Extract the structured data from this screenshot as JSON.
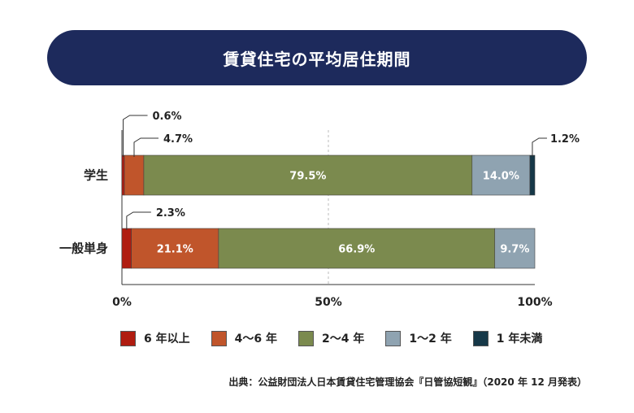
{
  "title": "賃貸住宅の平均居住期間",
  "source": "出典：公益財団法人日本賃貸住宅管理協会『日管協短観』（2020 年 12 月発表）",
  "colors": {
    "over6": "#b01c10",
    "y4to6": "#c0552b",
    "y2to4": "#7b8a4e",
    "y1to2": "#8fa3b1",
    "under1": "#163848"
  },
  "chart_data": {
    "type": "bar",
    "orientation": "horizontal",
    "stacked": true,
    "categories": [
      "学生",
      "一般単身"
    ],
    "series": [
      {
        "name": "6 年以上",
        "values": [
          0.6,
          2.3
        ]
      },
      {
        "name": "4～6 年",
        "values": [
          4.7,
          21.1
        ]
      },
      {
        "name": "2～4 年",
        "values": [
          79.5,
          66.9
        ]
      },
      {
        "name": "1～2 年",
        "values": [
          14.0,
          9.7
        ]
      },
      {
        "name": "1 年未満",
        "values": [
          1.2,
          0.0
        ]
      }
    ],
    "value_labels": [
      [
        "0.6%",
        "4.7%",
        "79.5%",
        "14.0%",
        "1.2%"
      ],
      [
        "2.3%",
        "21.1%",
        "66.9%",
        "9.7%",
        ""
      ]
    ],
    "xlim": [
      0,
      100
    ],
    "x_ticks": [
      {
        "value": 0,
        "label": "0%"
      },
      {
        "value": 50,
        "label": "50%"
      },
      {
        "value": 100,
        "label": "100%"
      }
    ],
    "grid": "dashed line at 50%",
    "legend_position": "bottom"
  }
}
